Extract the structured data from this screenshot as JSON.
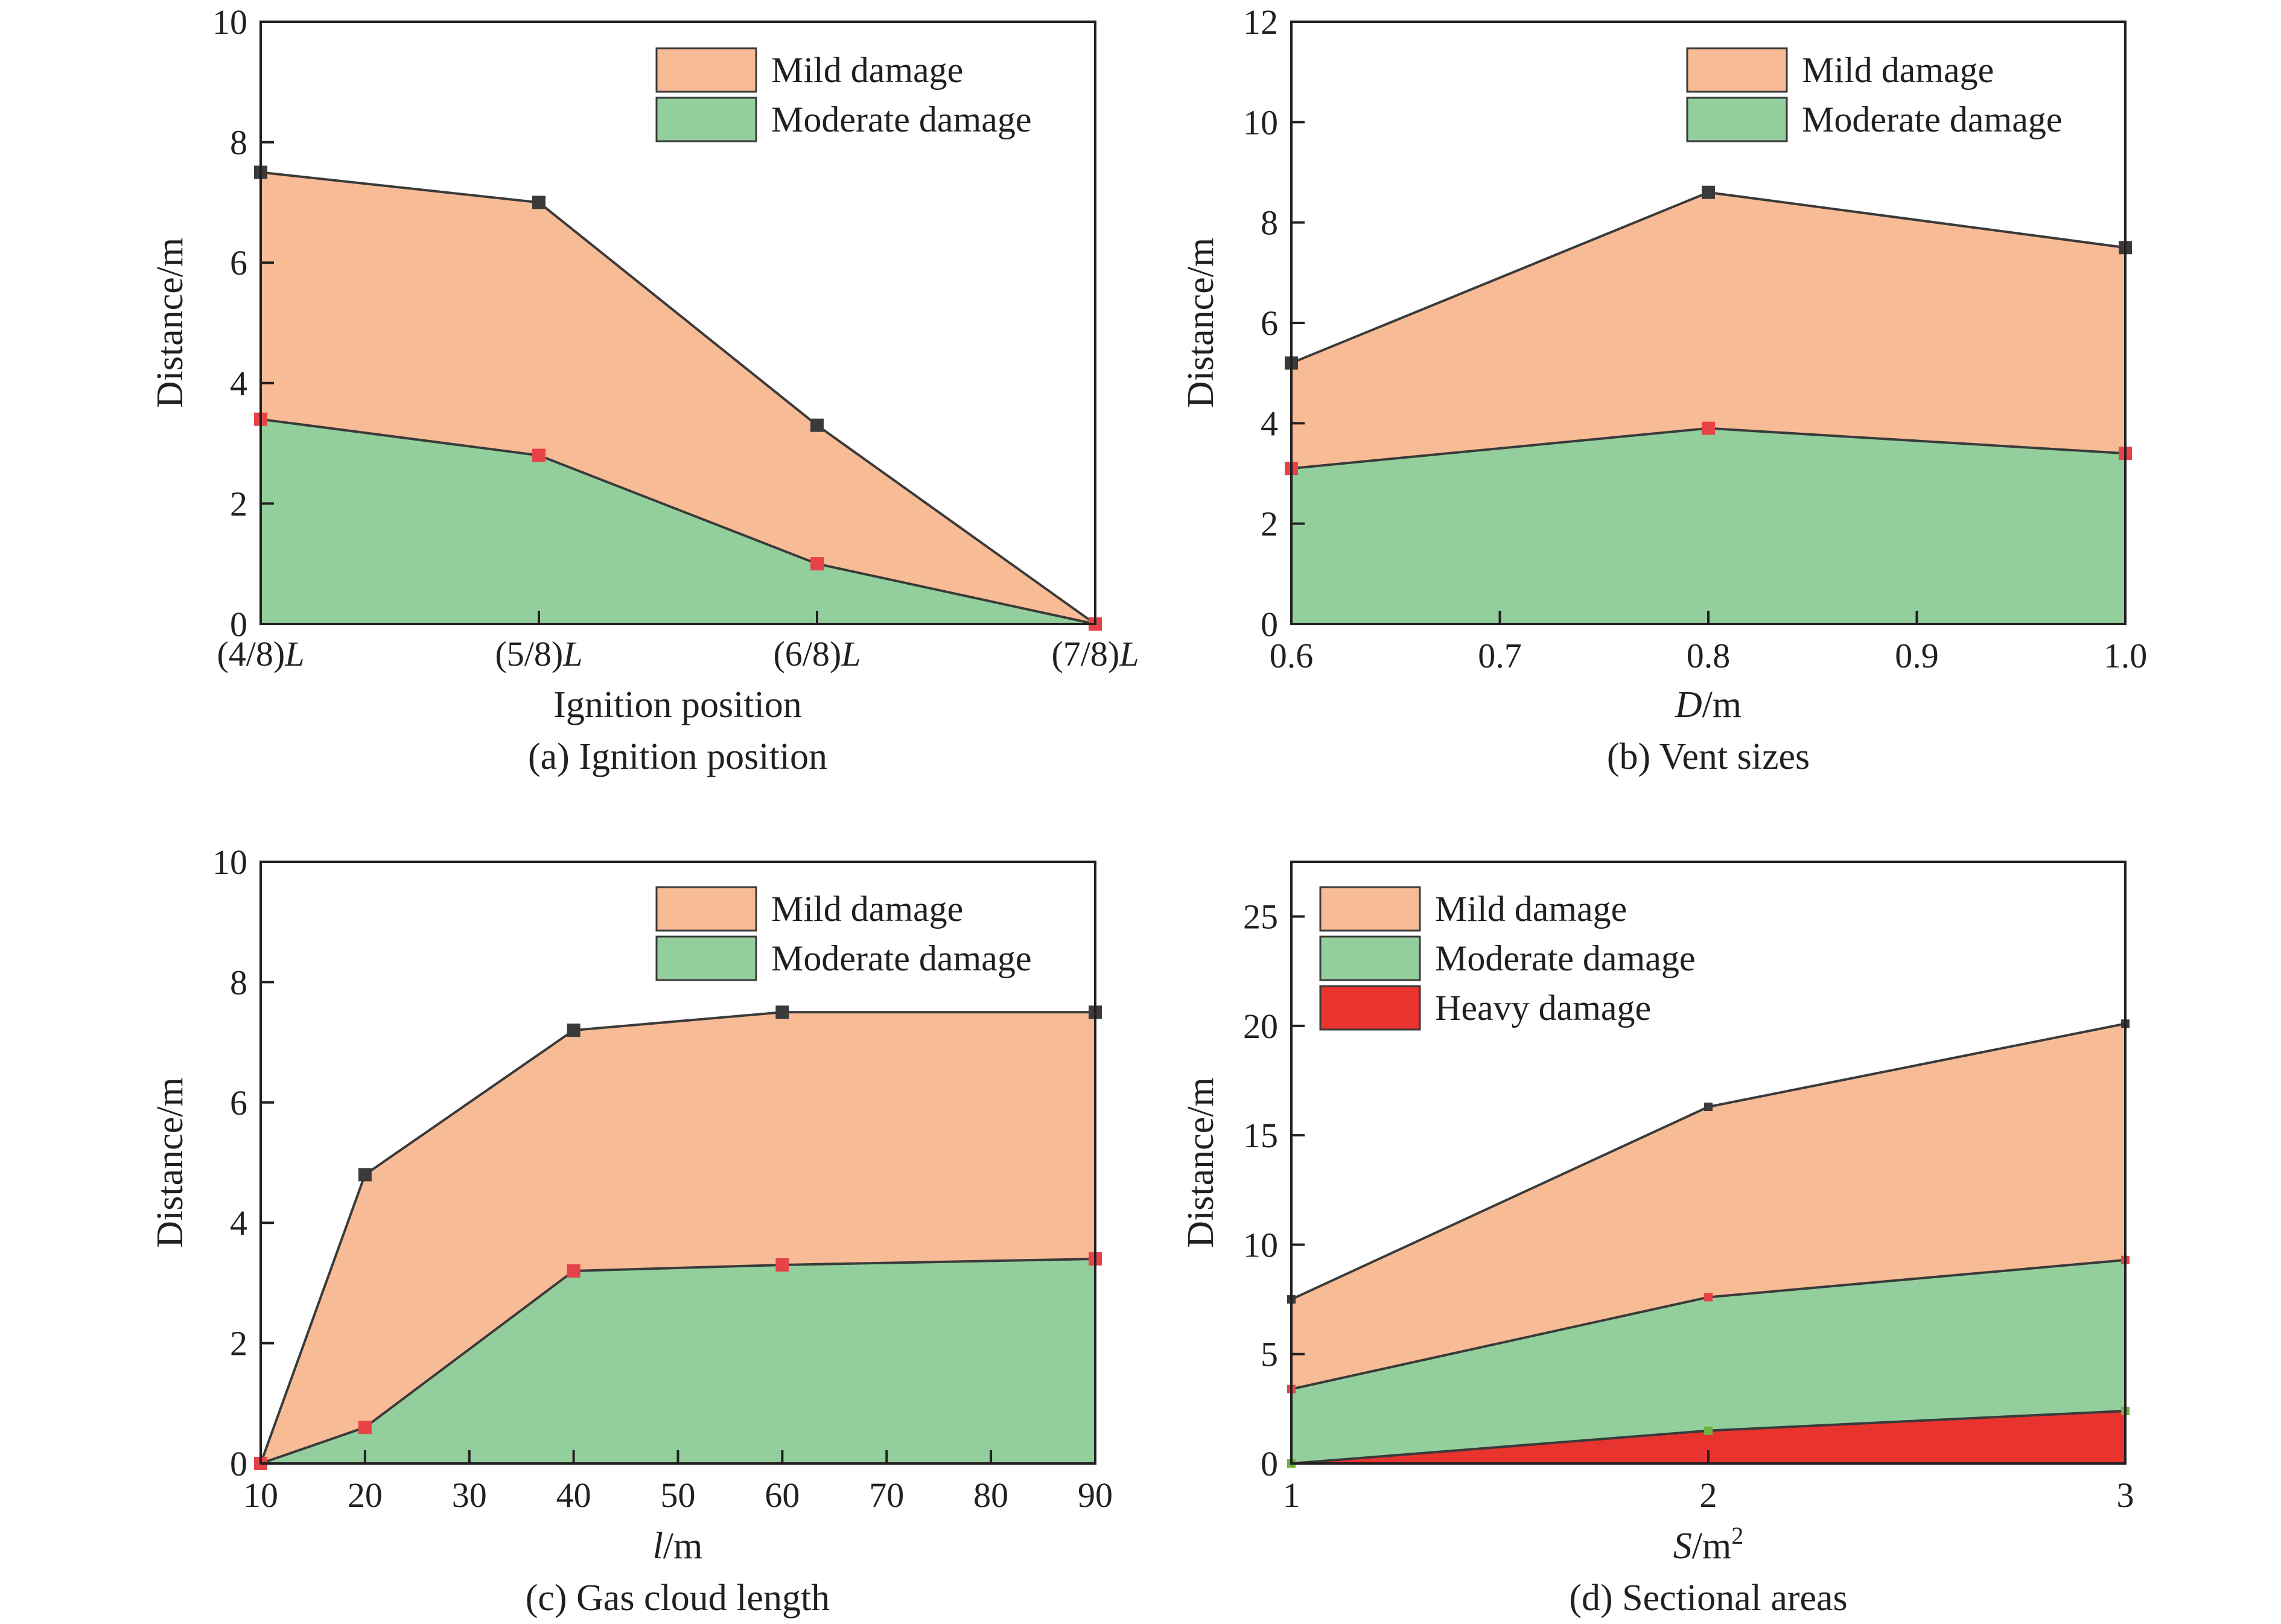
{
  "colors": {
    "mild": "#f7bc96",
    "moderate": "#93cf9d",
    "heavy": "#e8332e",
    "line": "#3a3a3a",
    "marker_dark": "#3a3a3a",
    "marker_red": "#e54348",
    "marker_green": "#6db33f",
    "axis": "#231f20"
  },
  "chart_data": [
    {
      "id": "a",
      "type": "area",
      "caption": "(a) Ignition position",
      "xlabel": "Ignition position",
      "ylabel": "Distance/m",
      "xscale": "categorical",
      "categories": [
        "(4/8)L",
        "(5/8)L",
        "(6/8)L",
        "(7/8)L"
      ],
      "category_labels": [
        {
          "pre": "(4/8)",
          "italic": "L"
        },
        {
          "pre": "(5/8)",
          "italic": "L"
        },
        {
          "pre": "(6/8)",
          "italic": "L"
        },
        {
          "pre": "(7/8)",
          "italic": "L"
        }
      ],
      "ylim": [
        0,
        10
      ],
      "yticks": [
        0,
        2,
        4,
        6,
        8,
        10
      ],
      "legend_position": "top-right",
      "series": [
        {
          "name": "Mild damage",
          "key": "mild",
          "values": [
            7.5,
            7.0,
            3.3,
            0
          ]
        },
        {
          "name": "Moderate damage",
          "key": "moderate",
          "values": [
            3.4,
            2.8,
            1.0,
            0
          ]
        }
      ]
    },
    {
      "id": "b",
      "type": "area",
      "caption": "(b) Vent sizes",
      "xlabel_italic": "D",
      "xlabel_rest": "/m",
      "ylabel": "Distance/m",
      "xscale": "linear",
      "x": [
        0.6,
        0.8,
        1.0
      ],
      "xlim": [
        0.6,
        1.0
      ],
      "xticks": [
        0.6,
        0.7,
        0.8,
        0.9,
        1.0
      ],
      "xtick_labels": [
        "0.6",
        "0.7",
        "0.8",
        "0.9",
        "1.0"
      ],
      "ylim": [
        0,
        12
      ],
      "yticks": [
        0,
        2,
        4,
        6,
        8,
        10,
        12
      ],
      "legend_position": "top-right",
      "series": [
        {
          "name": "Mild damage",
          "key": "mild",
          "values": [
            5.2,
            8.6,
            7.5
          ]
        },
        {
          "name": "Moderate damage",
          "key": "moderate",
          "values": [
            3.1,
            3.9,
            3.4
          ]
        }
      ]
    },
    {
      "id": "c",
      "type": "area",
      "caption": "(c) Gas cloud length",
      "xlabel_italic": "l",
      "xlabel_rest": "/m",
      "ylabel": "Distance/m",
      "xscale": "linear",
      "x": [
        10,
        20,
        40,
        60,
        90
      ],
      "xlim": [
        10,
        90
      ],
      "xticks": [
        10,
        20,
        30,
        40,
        50,
        60,
        70,
        80,
        90
      ],
      "xtick_labels": [
        "10",
        "20",
        "30",
        "40",
        "50",
        "60",
        "70",
        "80",
        "90"
      ],
      "ylim": [
        0,
        10
      ],
      "yticks": [
        0,
        2,
        4,
        6,
        8,
        10
      ],
      "legend_position": "top-right",
      "series": [
        {
          "name": "Mild damage",
          "key": "mild",
          "values": [
            0,
            4.8,
            7.2,
            7.5,
            7.5
          ]
        },
        {
          "name": "Moderate damage",
          "key": "moderate",
          "values": [
            0,
            0.6,
            3.2,
            3.3,
            3.4
          ]
        }
      ]
    },
    {
      "id": "d",
      "type": "area",
      "caption": "(d) Sectional areas",
      "xlabel_italic": "S",
      "xlabel_rest": "/m",
      "xlabel_sup": "2",
      "ylabel": "Distance/m",
      "xscale": "linear",
      "x": [
        1,
        2,
        3
      ],
      "xlim": [
        1,
        3
      ],
      "xticks": [
        1,
        2,
        3
      ],
      "xtick_labels": [
        "1",
        "2",
        "3"
      ],
      "ylim": [
        0,
        27.5
      ],
      "yticks": [
        0,
        5,
        10,
        15,
        20,
        25
      ],
      "legend_position": "top-left",
      "series": [
        {
          "name": "Mild damage",
          "key": "mild",
          "values": [
            7.5,
            16.3,
            20.1
          ]
        },
        {
          "name": "Moderate damage",
          "key": "moderate",
          "values": [
            3.4,
            7.6,
            9.3
          ]
        },
        {
          "name": "Heavy damage",
          "key": "heavy",
          "values": [
            0,
            1.5,
            2.4
          ]
        }
      ]
    }
  ]
}
